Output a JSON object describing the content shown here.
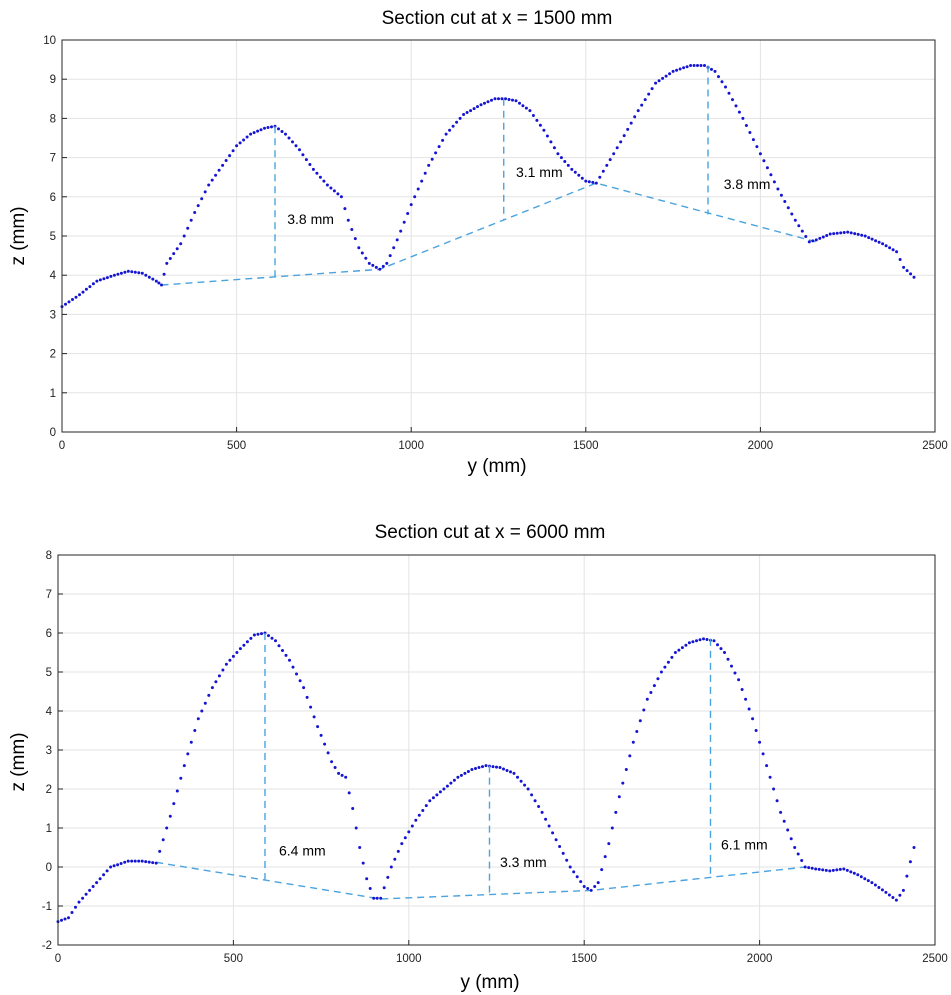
{
  "chart_data": [
    {
      "type": "scatter",
      "title": "Section cut at x = 1500 mm",
      "xlabel": "y (mm)",
      "ylabel": "z (mm)",
      "xlim": [
        0,
        2500
      ],
      "ylim": [
        0,
        10
      ],
      "xticks": [
        0,
        500,
        1000,
        1500,
        2000,
        2500
      ],
      "yticks": [
        0,
        1,
        2,
        3,
        4,
        5,
        6,
        7,
        8,
        9,
        10
      ],
      "grid": true,
      "colors": {
        "points": "#1414d2",
        "dashed": "#4aa3df"
      },
      "profile_keypoints": {
        "x": [
          0,
          50,
          100,
          150,
          190,
          230,
          270,
          285,
          300,
          340,
          380,
          420,
          460,
          500,
          540,
          580,
          610,
          640,
          680,
          720,
          760,
          800,
          820,
          850,
          880,
          910,
          930,
          960,
          1000,
          1050,
          1100,
          1150,
          1200,
          1240,
          1270,
          1300,
          1340,
          1380,
          1420,
          1460,
          1500,
          1530,
          1560,
          1600,
          1650,
          1700,
          1750,
          1800,
          1840,
          1870,
          1900,
          1950,
          2000,
          2050,
          2100,
          2140,
          2160,
          2200,
          2250,
          2300,
          2350,
          2390,
          2410,
          2440
        ],
        "y": [
          3.2,
          3.5,
          3.85,
          4.0,
          4.1,
          4.05,
          3.85,
          3.75,
          4.3,
          4.8,
          5.6,
          6.3,
          6.8,
          7.3,
          7.6,
          7.75,
          7.8,
          7.6,
          7.2,
          6.7,
          6.3,
          6.0,
          5.4,
          4.7,
          4.3,
          4.15,
          4.3,
          4.9,
          5.8,
          6.8,
          7.6,
          8.1,
          8.35,
          8.5,
          8.5,
          8.45,
          8.2,
          7.7,
          7.1,
          6.7,
          6.4,
          6.35,
          6.8,
          7.4,
          8.2,
          8.9,
          9.2,
          9.35,
          9.35,
          9.2,
          8.8,
          8.0,
          7.1,
          6.2,
          5.4,
          4.85,
          4.9,
          5.05,
          5.1,
          5.0,
          4.8,
          4.6,
          4.2,
          3.95
        ]
      },
      "baseline": {
        "x": [
          285,
          910,
          1530,
          2160
        ],
        "y": [
          3.75,
          4.15,
          6.35,
          4.85
        ]
      },
      "annotations": [
        {
          "label": "3.8 mm",
          "x": 610,
          "y_top": 7.8,
          "y_bottom": 3.97,
          "text_x": 645,
          "text_y": 5.3
        },
        {
          "label": "3.1 mm",
          "x": 1265,
          "y_top": 8.5,
          "y_bottom": 5.4,
          "text_x": 1300,
          "text_y": 6.5
        },
        {
          "label": "3.8 mm",
          "x": 1850,
          "y_top": 9.35,
          "y_bottom": 5.55,
          "text_x": 1895,
          "text_y": 6.2
        }
      ]
    },
    {
      "type": "scatter",
      "title": "Section cut at x = 6000 mm",
      "xlabel": "y (mm)",
      "ylabel": "z (mm)",
      "xlim": [
        0,
        2500
      ],
      "ylim": [
        -2,
        8
      ],
      "xticks": [
        0,
        500,
        1000,
        1500,
        2000,
        2500
      ],
      "yticks": [
        -2,
        -1,
        0,
        1,
        2,
        3,
        4,
        5,
        6,
        7,
        8
      ],
      "grid": true,
      "colors": {
        "points": "#1414d2",
        "dashed": "#4aa3df"
      },
      "profile_keypoints": {
        "x": [
          0,
          30,
          60,
          100,
          150,
          200,
          240,
          280,
          320,
          360,
          400,
          440,
          480,
          520,
          560,
          590,
          620,
          660,
          700,
          740,
          780,
          800,
          820,
          840,
          860,
          880,
          900,
          920,
          950,
          980,
          1020,
          1060,
          1100,
          1140,
          1180,
          1220,
          1260,
          1300,
          1340,
          1380,
          1420,
          1460,
          1500,
          1520,
          1540,
          1570,
          1600,
          1640,
          1680,
          1720,
          1760,
          1800,
          1840,
          1870,
          1900,
          1940,
          1980,
          2020,
          2060,
          2100,
          2130,
          2160,
          2200,
          2240,
          2280,
          2320,
          2360,
          2390,
          2410,
          2440
        ],
        "y": [
          -1.4,
          -1.3,
          -0.9,
          -0.5,
          0.0,
          0.15,
          0.15,
          0.1,
          1.3,
          2.6,
          3.8,
          4.6,
          5.2,
          5.6,
          5.95,
          6.0,
          5.8,
          5.3,
          4.6,
          3.6,
          2.7,
          2.4,
          2.3,
          1.5,
          0.5,
          -0.3,
          -0.8,
          -0.8,
          0.0,
          0.6,
          1.2,
          1.7,
          2.0,
          2.3,
          2.5,
          2.6,
          2.55,
          2.4,
          2.0,
          1.4,
          0.7,
          0.0,
          -0.5,
          -0.6,
          -0.4,
          0.6,
          1.8,
          3.2,
          4.3,
          5.0,
          5.5,
          5.75,
          5.85,
          5.8,
          5.5,
          4.8,
          3.8,
          2.6,
          1.4,
          0.5,
          0.0,
          -0.05,
          -0.1,
          -0.05,
          -0.2,
          -0.4,
          -0.65,
          -0.85,
          -0.6,
          0.5
        ]
      },
      "baseline": {
        "x": [
          280,
          920,
          1520,
          2130
        ],
        "y": [
          0.12,
          -0.82,
          -0.6,
          0.0
        ]
      },
      "annotations": [
        {
          "label": "6.4 mm",
          "x": 590,
          "y_top": 6.0,
          "y_bottom": -0.35,
          "text_x": 630,
          "text_y": 0.3
        },
        {
          "label": "3.3 mm",
          "x": 1230,
          "y_top": 2.6,
          "y_bottom": -0.7,
          "text_x": 1260,
          "text_y": 0.0
        },
        {
          "label": "6.1 mm",
          "x": 1860,
          "y_top": 5.85,
          "y_bottom": -0.25,
          "text_x": 1890,
          "text_y": 0.45
        }
      ]
    }
  ]
}
